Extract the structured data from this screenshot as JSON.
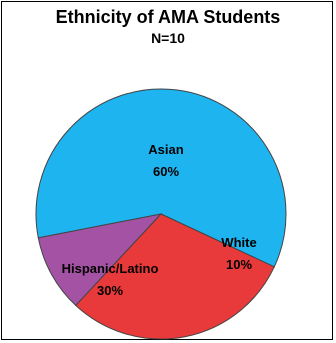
{
  "chart_data": {
    "type": "pie",
    "title": "Ethnicity of AMA Students",
    "subtitle": "N=10",
    "slices": [
      {
        "label": "Asian",
        "value": 60,
        "value_label": "60%",
        "color": "#1EB4F0"
      },
      {
        "label": "White",
        "value": 10,
        "value_label": "10%",
        "color": "#A453A4"
      },
      {
        "label": "Hispanic/Latino",
        "value": 30,
        "value_label": "30%",
        "color": "#E8393B"
      }
    ]
  }
}
